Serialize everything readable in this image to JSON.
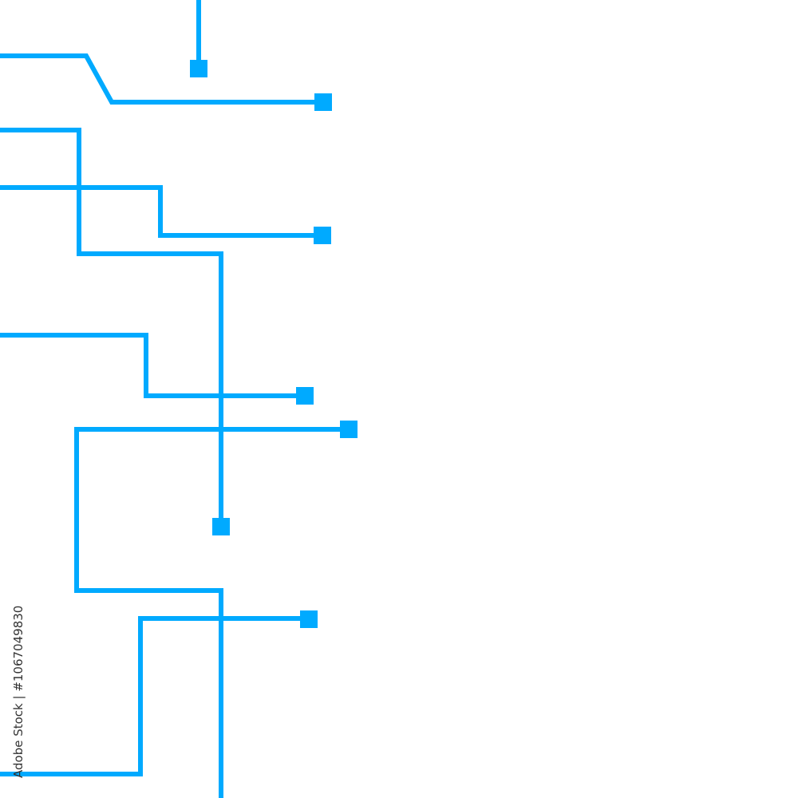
{
  "watermark": "Adobe Stock | #1067049830"
}
